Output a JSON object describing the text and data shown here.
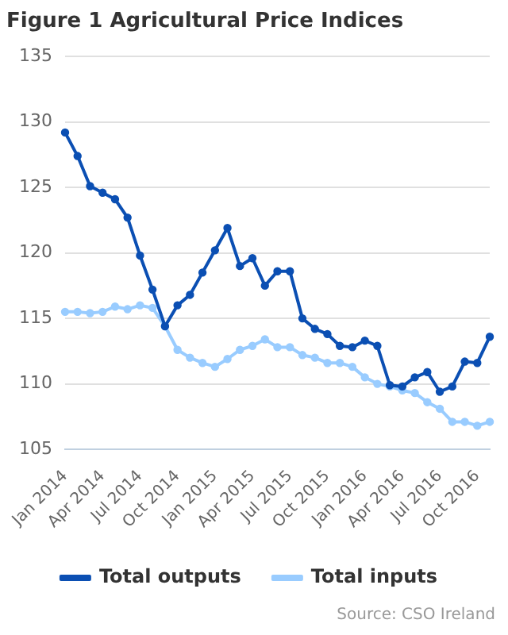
{
  "chart_data": {
    "type": "line",
    "title": "Figure 1 Agricultural Price Indices",
    "categories": [
      "Jan 2014",
      null,
      null,
      "Apr 2014",
      null,
      null,
      "Jul 2014",
      null,
      null,
      "Oct 2014",
      null,
      null,
      "Jan 2015",
      null,
      null,
      "Apr 2015",
      null,
      null,
      "Jul 2015",
      null,
      null,
      "Oct 2015",
      null,
      null,
      "Jan 2016",
      null,
      null,
      "Apr 2016",
      null,
      null,
      "Jul 2016",
      null,
      null,
      "Oct 2016",
      null
    ],
    "series": [
      {
        "name": "Total outputs",
        "color": "#0b4fb3",
        "values": [
          129.2,
          127.4,
          125.1,
          124.6,
          124.1,
          122.7,
          119.8,
          117.2,
          114.4,
          116.0,
          116.8,
          118.5,
          120.2,
          121.9,
          119.0,
          119.6,
          117.5,
          118.6,
          118.6,
          115.0,
          114.2,
          113.8,
          112.9,
          112.8,
          113.3,
          112.9,
          109.9,
          109.8,
          110.5,
          110.9,
          109.4,
          109.8,
          111.7,
          111.6,
          113.6
        ]
      },
      {
        "name": "Total inputs",
        "color": "#99ccff",
        "values": [
          115.5,
          115.5,
          115.4,
          115.5,
          115.9,
          115.7,
          116.0,
          115.8,
          114.4,
          112.6,
          112.0,
          111.6,
          111.3,
          111.9,
          112.6,
          112.9,
          113.4,
          112.8,
          112.8,
          112.2,
          112.0,
          111.6,
          111.6,
          111.3,
          110.5,
          110.0,
          109.8,
          109.5,
          109.3,
          108.6,
          108.1,
          107.1,
          107.1,
          106.8,
          107.1
        ]
      }
    ],
    "ylim": [
      105,
      135
    ],
    "yticks": [
      105,
      110,
      115,
      120,
      125,
      130,
      135
    ],
    "grid": "y",
    "legend": "bottom",
    "marker": "circle",
    "line_style": "solid",
    "annotations": [
      "Source: CSO Ireland"
    ]
  }
}
